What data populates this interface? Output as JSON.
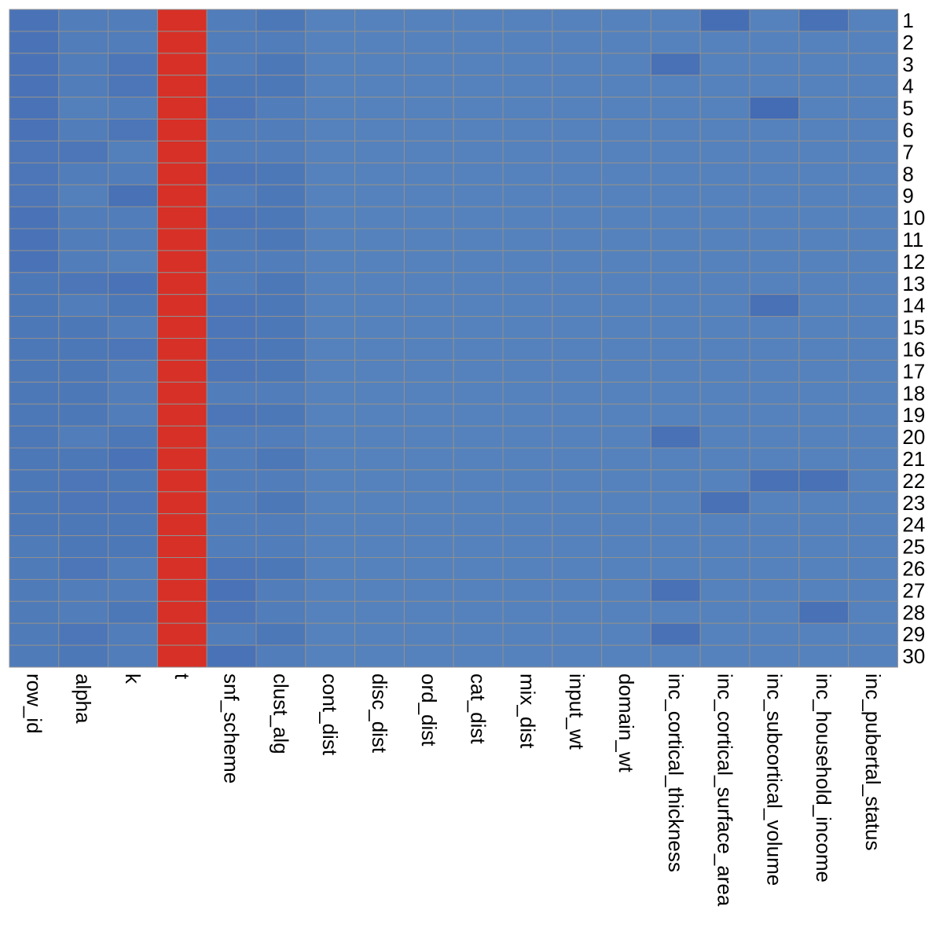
{
  "chart_data": {
    "type": "heatmap",
    "title": "",
    "xlabel": "",
    "ylabel": "",
    "legend": "none",
    "color_scale": {
      "low": "#4269b3",
      "mid": "#5582bc",
      "high": "#d73027",
      "min": 0,
      "max": 1
    },
    "rows": [
      "1",
      "2",
      "3",
      "4",
      "5",
      "6",
      "7",
      "8",
      "9",
      "10",
      "11",
      "12",
      "13",
      "14",
      "15",
      "16",
      "17",
      "18",
      "19",
      "20",
      "21",
      "22",
      "23",
      "24",
      "25",
      "26",
      "27",
      "28",
      "29",
      "30"
    ],
    "columns": [
      "row_id",
      "alpha",
      "k",
      "t",
      "snf_scheme",
      "clust_alg",
      "cont_dist",
      "disc_dist",
      "ord_dist",
      "cat_dist",
      "mix_dist",
      "input_wt",
      "domain_wt",
      "inc_cortical_thickness",
      "inc_cortical_surface_area",
      "inc_subcortical_volume",
      "inc_household_income",
      "inc_pubertal_status"
    ],
    "values": [
      [
        0.04,
        0.08,
        0.08,
        1,
        0.08,
        0.06,
        0.1,
        0.1,
        0.1,
        0.1,
        0.1,
        0.1,
        0.1,
        0.1,
        0.02,
        0.1,
        0.03,
        0.1
      ],
      [
        0.04,
        0.08,
        0.08,
        1,
        0.08,
        0.08,
        0.1,
        0.1,
        0.1,
        0.1,
        0.1,
        0.1,
        0.1,
        0.1,
        0.1,
        0.1,
        0.1,
        0.1
      ],
      [
        0.04,
        0.08,
        0.05,
        1,
        0.08,
        0.06,
        0.1,
        0.1,
        0.1,
        0.1,
        0.1,
        0.1,
        0.1,
        0.03,
        0.1,
        0.1,
        0.1,
        0.1
      ],
      [
        0.04,
        0.08,
        0.05,
        1,
        0.06,
        0.06,
        0.1,
        0.1,
        0.1,
        0.1,
        0.1,
        0.1,
        0.1,
        0.1,
        0.1,
        0.1,
        0.1,
        0.1
      ],
      [
        0.04,
        0.09,
        0.08,
        1,
        0.05,
        0.08,
        0.1,
        0.1,
        0.1,
        0.1,
        0.1,
        0.1,
        0.1,
        0.1,
        0.1,
        0.01,
        0.1,
        0.1
      ],
      [
        0.04,
        0.08,
        0.05,
        1,
        0.08,
        0.08,
        0.1,
        0.1,
        0.1,
        0.1,
        0.1,
        0.1,
        0.1,
        0.1,
        0.1,
        0.1,
        0.1,
        0.1
      ],
      [
        0.05,
        0.05,
        0.09,
        1,
        0.08,
        0.08,
        0.1,
        0.1,
        0.1,
        0.1,
        0.1,
        0.1,
        0.1,
        0.1,
        0.1,
        0.1,
        0.1,
        0.1
      ],
      [
        0.05,
        0.08,
        0.08,
        1,
        0.05,
        0.06,
        0.1,
        0.1,
        0.1,
        0.1,
        0.1,
        0.1,
        0.1,
        0.1,
        0.1,
        0.1,
        0.1,
        0.1
      ],
      [
        0.05,
        0.09,
        0.03,
        1,
        0.08,
        0.06,
        0.1,
        0.1,
        0.1,
        0.1,
        0.1,
        0.1,
        0.1,
        0.1,
        0.1,
        0.1,
        0.1,
        0.1
      ],
      [
        0.04,
        0.08,
        0.08,
        1,
        0.05,
        0.06,
        0.1,
        0.1,
        0.1,
        0.1,
        0.1,
        0.1,
        0.1,
        0.1,
        0.1,
        0.1,
        0.1,
        0.1
      ],
      [
        0.04,
        0.08,
        0.08,
        1,
        0.07,
        0.06,
        0.1,
        0.1,
        0.1,
        0.1,
        0.1,
        0.1,
        0.1,
        0.1,
        0.1,
        0.1,
        0.1,
        0.1
      ],
      [
        0.04,
        0.08,
        0.09,
        1,
        0.08,
        0.08,
        0.1,
        0.1,
        0.1,
        0.1,
        0.1,
        0.1,
        0.1,
        0.1,
        0.1,
        0.1,
        0.1,
        0.1
      ],
      [
        0.06,
        0.05,
        0.04,
        1,
        0.08,
        0.06,
        0.1,
        0.1,
        0.1,
        0.1,
        0.1,
        0.1,
        0.1,
        0.1,
        0.1,
        0.1,
        0.1,
        0.1
      ],
      [
        0.06,
        0.08,
        0.06,
        1,
        0.05,
        0.06,
        0.1,
        0.1,
        0.1,
        0.1,
        0.1,
        0.1,
        0.1,
        0.1,
        0.1,
        0.03,
        0.1,
        0.1
      ],
      [
        0.06,
        0.06,
        0.08,
        1,
        0.05,
        0.06,
        0.1,
        0.1,
        0.1,
        0.1,
        0.1,
        0.1,
        0.1,
        0.1,
        0.1,
        0.1,
        0.1,
        0.1
      ],
      [
        0.06,
        0.06,
        0.05,
        1,
        0.05,
        0.06,
        0.1,
        0.1,
        0.1,
        0.1,
        0.1,
        0.1,
        0.1,
        0.1,
        0.1,
        0.1,
        0.1,
        0.1
      ],
      [
        0.06,
        0.06,
        0.08,
        1,
        0.05,
        0.06,
        0.1,
        0.1,
        0.1,
        0.1,
        0.1,
        0.1,
        0.1,
        0.1,
        0.1,
        0.1,
        0.1,
        0.1
      ],
      [
        0.06,
        0.06,
        0.08,
        1,
        0.08,
        0.08,
        0.1,
        0.1,
        0.1,
        0.1,
        0.1,
        0.1,
        0.1,
        0.1,
        0.1,
        0.1,
        0.1,
        0.1
      ],
      [
        0.06,
        0.06,
        0.08,
        1,
        0.05,
        0.06,
        0.1,
        0.1,
        0.1,
        0.1,
        0.1,
        0.1,
        0.1,
        0.1,
        0.1,
        0.1,
        0.1,
        0.1
      ],
      [
        0.06,
        0.08,
        0.06,
        1,
        0.08,
        0.08,
        0.1,
        0.1,
        0.1,
        0.1,
        0.1,
        0.1,
        0.1,
        0.03,
        0.1,
        0.1,
        0.1,
        0.1
      ],
      [
        0.06,
        0.06,
        0.04,
        1,
        0.08,
        0.06,
        0.1,
        0.1,
        0.1,
        0.1,
        0.1,
        0.1,
        0.1,
        0.1,
        0.1,
        0.1,
        0.1,
        0.1
      ],
      [
        0.06,
        0.05,
        0.06,
        1,
        0.08,
        0.08,
        0.1,
        0.1,
        0.1,
        0.1,
        0.1,
        0.1,
        0.1,
        0.1,
        0.1,
        0.03,
        0.03,
        0.1
      ],
      [
        0.06,
        0.05,
        0.05,
        1,
        0.08,
        0.06,
        0.1,
        0.1,
        0.1,
        0.1,
        0.1,
        0.1,
        0.1,
        0.1,
        0.03,
        0.1,
        0.1,
        0.1
      ],
      [
        0.06,
        0.06,
        0.06,
        1,
        0.08,
        0.08,
        0.1,
        0.1,
        0.1,
        0.1,
        0.1,
        0.1,
        0.1,
        0.1,
        0.1,
        0.1,
        0.1,
        0.1
      ],
      [
        0.07,
        0.06,
        0.06,
        1,
        0.08,
        0.08,
        0.1,
        0.1,
        0.1,
        0.1,
        0.1,
        0.1,
        0.1,
        0.1,
        0.1,
        0.1,
        0.1,
        0.1
      ],
      [
        0.07,
        0.05,
        0.08,
        1,
        0.05,
        0.06,
        0.1,
        0.1,
        0.1,
        0.1,
        0.1,
        0.1,
        0.1,
        0.1,
        0.1,
        0.1,
        0.1,
        0.1
      ],
      [
        0.07,
        0.08,
        0.08,
        1,
        0.04,
        0.08,
        0.1,
        0.1,
        0.1,
        0.1,
        0.1,
        0.1,
        0.1,
        0.03,
        0.1,
        0.1,
        0.1,
        0.1
      ],
      [
        0.07,
        0.08,
        0.06,
        1,
        0.05,
        0.08,
        0.1,
        0.1,
        0.1,
        0.1,
        0.1,
        0.1,
        0.1,
        0.1,
        0.1,
        0.1,
        0.03,
        0.1
      ],
      [
        0.07,
        0.05,
        0.08,
        1,
        0.08,
        0.06,
        0.1,
        0.1,
        0.1,
        0.1,
        0.1,
        0.1,
        0.1,
        0.03,
        0.1,
        0.1,
        0.1,
        0.1
      ],
      [
        0.07,
        0.06,
        0.08,
        1,
        0.04,
        0.08,
        0.1,
        0.1,
        0.1,
        0.1,
        0.1,
        0.1,
        0.1,
        0.1,
        0.1,
        0.1,
        0.1,
        0.1
      ]
    ]
  }
}
